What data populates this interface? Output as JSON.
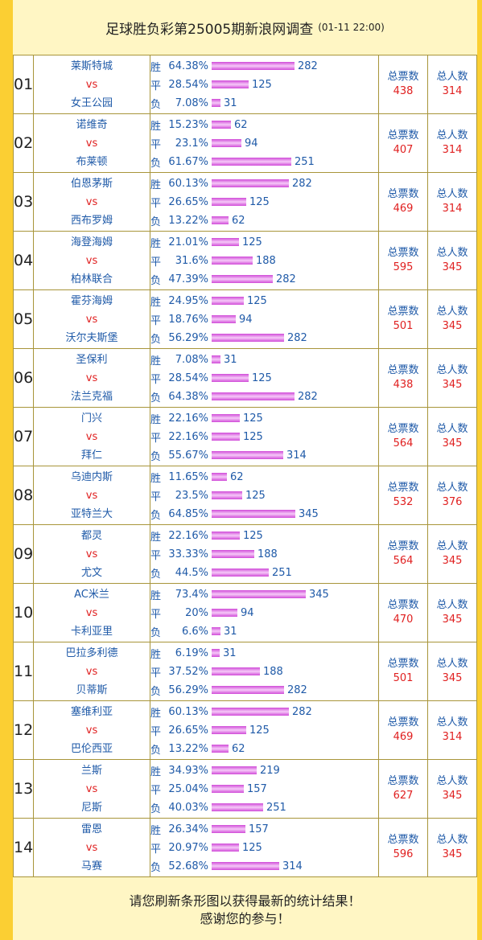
{
  "header": {
    "title": "足球胜负彩第25005期新浪网调查",
    "time": "(01-11 22:00)"
  },
  "labels": {
    "vs": "vs",
    "win": "胜",
    "draw": "平",
    "lose": "负",
    "total_votes": "总票数",
    "total_people": "总人数"
  },
  "colors": {
    "team": "#1f5aa8",
    "vs": "#e02020",
    "bar": "#d04bd8"
  },
  "matches": [
    {
      "num": "01",
      "home": "莱斯特城",
      "away": "女王公园",
      "win": {
        "pct": "64.38%",
        "count": "282",
        "frac": 0.6438
      },
      "draw": {
        "pct": "28.54%",
        "count": "125",
        "frac": 0.2854
      },
      "lose": {
        "pct": "7.08%",
        "count": "31",
        "frac": 0.0708
      },
      "votes": "438",
      "people": "314"
    },
    {
      "num": "02",
      "home": "诺维奇",
      "away": "布莱顿",
      "win": {
        "pct": "15.23%",
        "count": "62",
        "frac": 0.1523
      },
      "draw": {
        "pct": "23.1%",
        "count": "94",
        "frac": 0.231
      },
      "lose": {
        "pct": "61.67%",
        "count": "251",
        "frac": 0.6167
      },
      "votes": "407",
      "people": "314"
    },
    {
      "num": "03",
      "home": "伯恩茅斯",
      "away": "西布罗姆",
      "win": {
        "pct": "60.13%",
        "count": "282",
        "frac": 0.6013
      },
      "draw": {
        "pct": "26.65%",
        "count": "125",
        "frac": 0.2665
      },
      "lose": {
        "pct": "13.22%",
        "count": "62",
        "frac": 0.1322
      },
      "votes": "469",
      "people": "314"
    },
    {
      "num": "04",
      "home": "海登海姆",
      "away": "柏林联合",
      "win": {
        "pct": "21.01%",
        "count": "125",
        "frac": 0.2101
      },
      "draw": {
        "pct": "31.6%",
        "count": "188",
        "frac": 0.316
      },
      "lose": {
        "pct": "47.39%",
        "count": "282",
        "frac": 0.4739
      },
      "votes": "595",
      "people": "345"
    },
    {
      "num": "05",
      "home": "霍芬海姆",
      "away": "沃尔夫斯堡",
      "win": {
        "pct": "24.95%",
        "count": "125",
        "frac": 0.2495
      },
      "draw": {
        "pct": "18.76%",
        "count": "94",
        "frac": 0.1876
      },
      "lose": {
        "pct": "56.29%",
        "count": "282",
        "frac": 0.5629
      },
      "votes": "501",
      "people": "345"
    },
    {
      "num": "06",
      "home": "圣保利",
      "away": "法兰克福",
      "win": {
        "pct": "7.08%",
        "count": "31",
        "frac": 0.0708
      },
      "draw": {
        "pct": "28.54%",
        "count": "125",
        "frac": 0.2854
      },
      "lose": {
        "pct": "64.38%",
        "count": "282",
        "frac": 0.6438
      },
      "votes": "438",
      "people": "345"
    },
    {
      "num": "07",
      "home": "门兴",
      "away": "拜仁",
      "win": {
        "pct": "22.16%",
        "count": "125",
        "frac": 0.2216
      },
      "draw": {
        "pct": "22.16%",
        "count": "125",
        "frac": 0.2216
      },
      "lose": {
        "pct": "55.67%",
        "count": "314",
        "frac": 0.5567
      },
      "votes": "564",
      "people": "345"
    },
    {
      "num": "08",
      "home": "乌迪内斯",
      "away": "亚特兰大",
      "win": {
        "pct": "11.65%",
        "count": "62",
        "frac": 0.1165
      },
      "draw": {
        "pct": "23.5%",
        "count": "125",
        "frac": 0.235
      },
      "lose": {
        "pct": "64.85%",
        "count": "345",
        "frac": 0.6485
      },
      "votes": "532",
      "people": "376"
    },
    {
      "num": "09",
      "home": "都灵",
      "away": "尤文",
      "win": {
        "pct": "22.16%",
        "count": "125",
        "frac": 0.2216
      },
      "draw": {
        "pct": "33.33%",
        "count": "188",
        "frac": 0.3333
      },
      "lose": {
        "pct": "44.5%",
        "count": "251",
        "frac": 0.445
      },
      "votes": "564",
      "people": "345"
    },
    {
      "num": "10",
      "home": "AC米兰",
      "away": "卡利亚里",
      "win": {
        "pct": "73.4%",
        "count": "345",
        "frac": 0.734
      },
      "draw": {
        "pct": "20%",
        "count": "94",
        "frac": 0.2
      },
      "lose": {
        "pct": "6.6%",
        "count": "31",
        "frac": 0.066
      },
      "votes": "470",
      "people": "345"
    },
    {
      "num": "11",
      "home": "巴拉多利德",
      "away": "贝蒂斯",
      "win": {
        "pct": "6.19%",
        "count": "31",
        "frac": 0.0619
      },
      "draw": {
        "pct": "37.52%",
        "count": "188",
        "frac": 0.3752
      },
      "lose": {
        "pct": "56.29%",
        "count": "282",
        "frac": 0.5629
      },
      "votes": "501",
      "people": "345"
    },
    {
      "num": "12",
      "home": "塞维利亚",
      "away": "巴伦西亚",
      "win": {
        "pct": "60.13%",
        "count": "282",
        "frac": 0.6013
      },
      "draw": {
        "pct": "26.65%",
        "count": "125",
        "frac": 0.2665
      },
      "lose": {
        "pct": "13.22%",
        "count": "62",
        "frac": 0.1322
      },
      "votes": "469",
      "people": "314"
    },
    {
      "num": "13",
      "home": "兰斯",
      "away": "尼斯",
      "win": {
        "pct": "34.93%",
        "count": "219",
        "frac": 0.3493
      },
      "draw": {
        "pct": "25.04%",
        "count": "157",
        "frac": 0.2504
      },
      "lose": {
        "pct": "40.03%",
        "count": "251",
        "frac": 0.4003
      },
      "votes": "627",
      "people": "345"
    },
    {
      "num": "14",
      "home": "雷恩",
      "away": "马赛",
      "win": {
        "pct": "26.34%",
        "count": "157",
        "frac": 0.2634
      },
      "draw": {
        "pct": "20.97%",
        "count": "125",
        "frac": 0.2097
      },
      "lose": {
        "pct": "52.68%",
        "count": "314",
        "frac": 0.5268
      },
      "votes": "596",
      "people": "345"
    }
  ],
  "footer": {
    "line1": "请您刷新条形图以获得最新的统计结果！",
    "line2": "感谢您的参与！"
  }
}
